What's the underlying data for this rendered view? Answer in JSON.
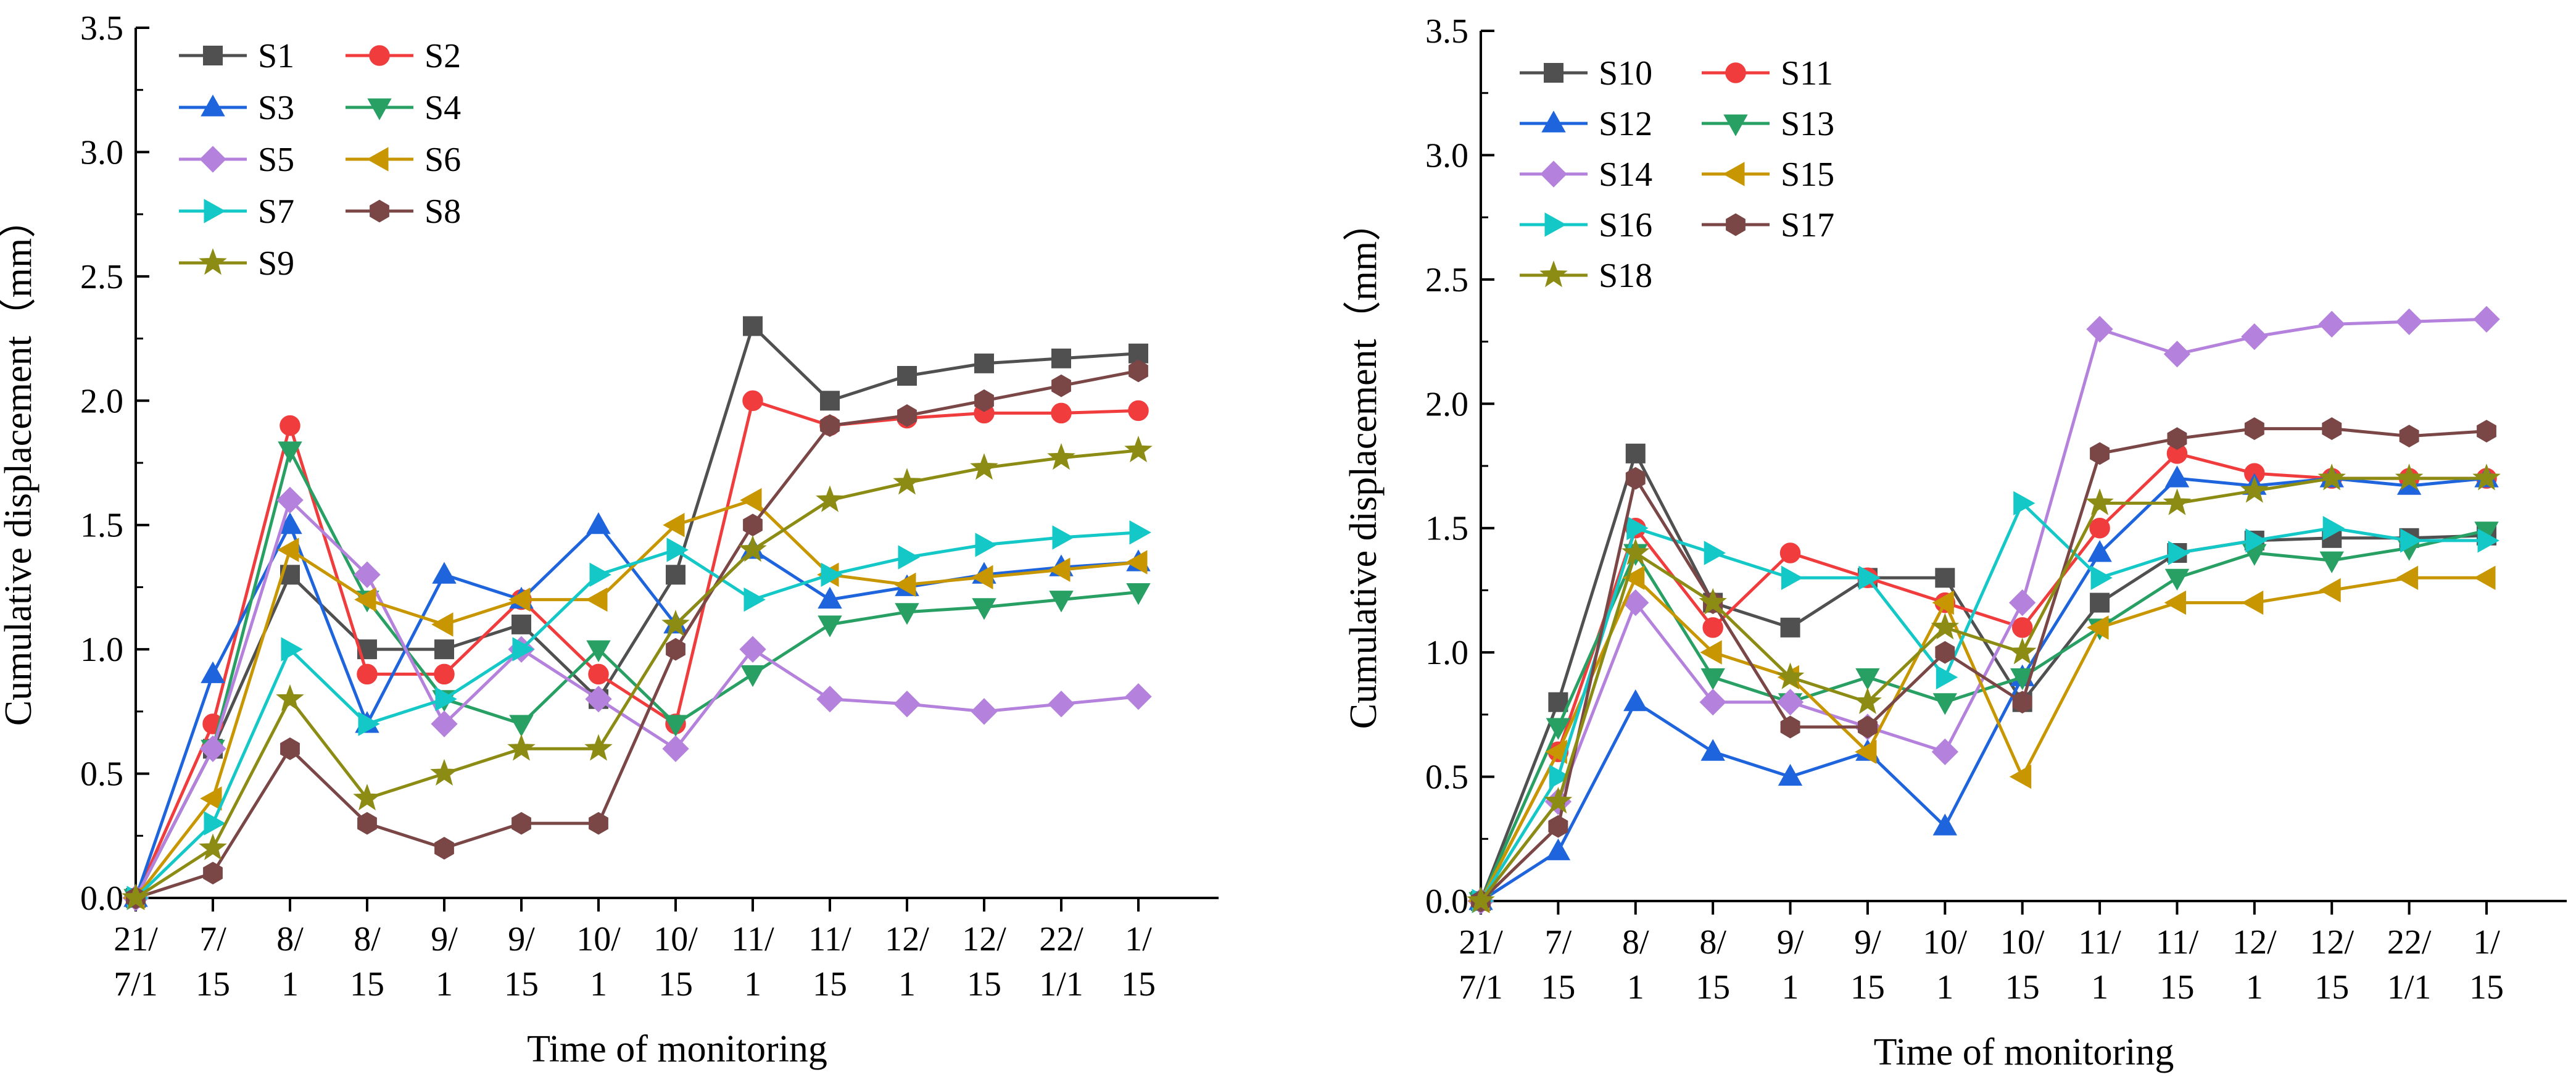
{
  "chart_data": [
    {
      "type": "line",
      "categories": [
        "21/\n7/1",
        "7/\n15",
        "8/\n1",
        "8/\n15",
        "9/\n1",
        "9/\n15",
        "10/\n1",
        "10/\n15",
        "11/\n1",
        "11/\n15",
        "12/\n1",
        "12/\n15",
        "22/\n1/1",
        "1/\n15"
      ],
      "xlabel": "Time of monitoring",
      "ylabel": "Cumulative displacement（mm）",
      "ylim": [
        0,
        3.5
      ],
      "yticks": [
        "0.0",
        "0.5",
        "1.0",
        "1.5",
        "2.0",
        "2.5",
        "3.0",
        "3.5"
      ],
      "legend_position": "top-left",
      "series": [
        {
          "name": "S1",
          "color": "#505050",
          "marker": "square",
          "values": [
            0,
            0.6,
            1.3,
            1.0,
            1.0,
            1.1,
            0.8,
            1.3,
            2.3,
            2.0,
            2.1,
            2.15,
            2.17,
            2.19
          ]
        },
        {
          "name": "S2",
          "color": "#f03c3c",
          "marker": "circle",
          "values": [
            0,
            0.7,
            1.9,
            0.9,
            0.9,
            1.2,
            0.9,
            0.7,
            2.0,
            1.9,
            1.93,
            1.95,
            1.95,
            1.96
          ]
        },
        {
          "name": "S3",
          "color": "#1e64dc",
          "marker": "triangle-up",
          "values": [
            0,
            0.9,
            1.5,
            0.7,
            1.3,
            1.2,
            1.5,
            1.1,
            1.4,
            1.2,
            1.25,
            1.3,
            1.33,
            1.35
          ]
        },
        {
          "name": "S4",
          "color": "#28a064",
          "marker": "triangle-down",
          "values": [
            0,
            0.6,
            1.8,
            1.2,
            0.8,
            0.7,
            1.0,
            0.7,
            0.9,
            1.1,
            1.15,
            1.17,
            1.2,
            1.23
          ]
        },
        {
          "name": "S5",
          "color": "#b482dc",
          "marker": "diamond",
          "values": [
            0,
            0.6,
            1.6,
            1.3,
            0.7,
            1.0,
            0.8,
            0.6,
            1.0,
            0.8,
            0.78,
            0.75,
            0.78,
            0.81
          ]
        },
        {
          "name": "S6",
          "color": "#c89600",
          "marker": "triangle-left",
          "values": [
            0,
            0.4,
            1.4,
            1.2,
            1.1,
            1.2,
            1.2,
            1.5,
            1.6,
            1.3,
            1.26,
            1.29,
            1.32,
            1.35
          ]
        },
        {
          "name": "S7",
          "color": "#14c8c8",
          "marker": "triangle-right",
          "values": [
            0,
            0.3,
            1.0,
            0.7,
            0.8,
            1.0,
            1.3,
            1.4,
            1.2,
            1.3,
            1.37,
            1.42,
            1.45,
            1.47
          ]
        },
        {
          "name": "S8",
          "color": "#7a4646",
          "marker": "hexagon",
          "values": [
            0,
            0.1,
            0.6,
            0.3,
            0.2,
            0.3,
            0.3,
            1.0,
            1.5,
            1.9,
            1.94,
            2.0,
            2.06,
            2.12
          ]
        },
        {
          "name": "S9",
          "color": "#8c8c14",
          "marker": "star",
          "values": [
            0,
            0.2,
            0.8,
            0.4,
            0.5,
            0.6,
            0.6,
            1.1,
            1.4,
            1.6,
            1.67,
            1.73,
            1.77,
            1.8
          ]
        }
      ]
    },
    {
      "type": "line",
      "categories": [
        "21/\n7/1",
        "7/\n15",
        "8/\n1",
        "8/\n15",
        "9/\n1",
        "9/\n15",
        "10/\n1",
        "10/\n15",
        "11/\n1",
        "11/\n15",
        "12/\n1",
        "12/\n15",
        "22/\n1/1",
        "1/\n15"
      ],
      "xlabel": "Time of monitoring",
      "ylabel": "Cumulative displacement（mm）",
      "ylim": [
        0,
        3.5
      ],
      "yticks": [
        "0.0",
        "0.5",
        "1.0",
        "1.5",
        "2.0",
        "2.5",
        "3.0",
        "3.5"
      ],
      "legend_position": "top-left",
      "series": [
        {
          "name": "S10",
          "color": "#505050",
          "marker": "square",
          "values": [
            0,
            0.8,
            1.8,
            1.2,
            1.1,
            1.3,
            1.3,
            0.8,
            1.2,
            1.4,
            1.45,
            1.46,
            1.46,
            1.47
          ]
        },
        {
          "name": "S11",
          "color": "#f03c3c",
          "marker": "circle",
          "values": [
            0,
            0.6,
            1.5,
            1.1,
            1.4,
            1.3,
            1.2,
            1.1,
            1.5,
            1.8,
            1.72,
            1.7,
            1.7,
            1.7
          ]
        },
        {
          "name": "S12",
          "color": "#1e64dc",
          "marker": "triangle-up",
          "values": [
            0,
            0.2,
            0.8,
            0.6,
            0.5,
            0.6,
            0.3,
            0.9,
            1.4,
            1.7,
            1.67,
            1.7,
            1.67,
            1.7
          ]
        },
        {
          "name": "S13",
          "color": "#28a064",
          "marker": "triangle-down",
          "values": [
            0,
            0.7,
            1.4,
            0.9,
            0.8,
            0.9,
            0.8,
            0.9,
            1.1,
            1.3,
            1.4,
            1.37,
            1.42,
            1.49
          ]
        },
        {
          "name": "S14",
          "color": "#b482dc",
          "marker": "diamond",
          "values": [
            0,
            0.4,
            1.2,
            0.8,
            0.8,
            0.7,
            0.6,
            1.2,
            2.3,
            2.2,
            2.27,
            2.32,
            2.33,
            2.34
          ]
        },
        {
          "name": "S15",
          "color": "#c89600",
          "marker": "triangle-left",
          "values": [
            0,
            0.6,
            1.3,
            1.0,
            0.9,
            0.6,
            1.2,
            0.5,
            1.1,
            1.2,
            1.2,
            1.25,
            1.3,
            1.3
          ]
        },
        {
          "name": "S16",
          "color": "#14c8c8",
          "marker": "triangle-right",
          "values": [
            0,
            0.5,
            1.5,
            1.4,
            1.3,
            1.3,
            0.9,
            1.6,
            1.3,
            1.4,
            1.45,
            1.5,
            1.45,
            1.45
          ]
        },
        {
          "name": "S17",
          "color": "#7a4646",
          "marker": "hexagon",
          "values": [
            0,
            0.3,
            1.7,
            1.2,
            0.7,
            0.7,
            1.0,
            0.8,
            1.8,
            1.86,
            1.9,
            1.9,
            1.87,
            1.89
          ]
        },
        {
          "name": "S18",
          "color": "#8c8c14",
          "marker": "star",
          "values": [
            0,
            0.4,
            1.4,
            1.2,
            0.9,
            0.8,
            1.1,
            1.0,
            1.6,
            1.6,
            1.65,
            1.7,
            1.7,
            1.7
          ]
        }
      ]
    }
  ]
}
